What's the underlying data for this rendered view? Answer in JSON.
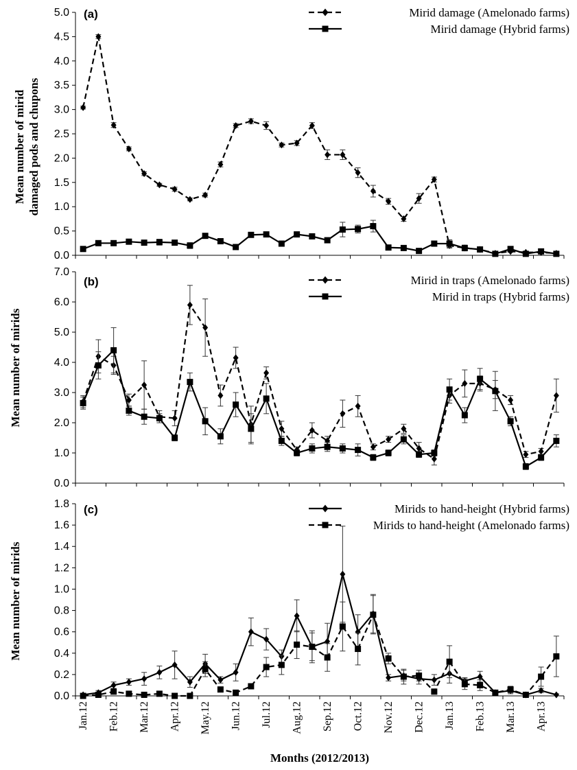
{
  "figure": {
    "xlabel": "Months (2012/2013)",
    "months": [
      "Jan.12",
      "Feb.12",
      "Mar.12",
      "Apr.12",
      "May.12",
      "Jun.12",
      "Jul.12",
      "Aug.12",
      "Sep.12",
      "Oct.12",
      "Nov.12",
      "Dec.12",
      "Jan.13",
      "Feb.13",
      "Mar.13",
      "Apr.13"
    ]
  },
  "chart_data": [
    {
      "type": "line",
      "panel": "(a)",
      "ylabel": "Mean number of mirid damaged pods and chupons",
      "ylabel_lines": [
        "Mean number of mirid",
        "damaged pods and chupons"
      ],
      "ylim": [
        0,
        5
      ],
      "yticks": [
        "0.0",
        "0.5",
        "1.0",
        "1.5",
        "2.0",
        "2.5",
        "3.0",
        "3.5",
        "4.0",
        "4.5",
        "5.0"
      ],
      "x_points_per_month": 2,
      "legend_position": "top-right",
      "series": [
        {
          "name": "Mirid damage (Amelonado farms)",
          "style": "dashed",
          "marker": "diamond",
          "values": [
            3.04,
            4.5,
            2.68,
            2.19,
            1.68,
            1.45,
            1.36,
            1.15,
            1.24,
            1.87,
            2.67,
            2.76,
            2.67,
            2.27,
            2.31,
            2.67,
            2.07,
            2.07,
            1.7,
            1.32,
            1.11,
            0.75,
            1.17,
            1.56,
            0.2,
            0.15,
            0.12,
            0.04,
            0.08,
            0.06,
            0.06,
            0.04
          ],
          "errors": [
            0.03,
            0.04,
            0.05,
            0.04,
            0.04,
            0.03,
            0.04,
            0.03,
            0.04,
            0.05,
            0.04,
            0.05,
            0.08,
            0.04,
            0.05,
            0.06,
            0.1,
            0.1,
            0.1,
            0.12,
            0.06,
            0.05,
            0.1,
            0.05,
            0.05,
            0.04,
            0.03,
            0.02,
            0.02,
            0.02,
            0.02,
            0.02
          ]
        },
        {
          "name": "Mirid damage (Hybrid farms)",
          "style": "solid",
          "marker": "square",
          "values": [
            0.13,
            0.25,
            0.25,
            0.28,
            0.26,
            0.27,
            0.26,
            0.2,
            0.4,
            0.29,
            0.17,
            0.42,
            0.43,
            0.24,
            0.43,
            0.39,
            0.31,
            0.53,
            0.54,
            0.6,
            0.16,
            0.15,
            0.09,
            0.24,
            0.24,
            0.15,
            0.12,
            0.03,
            0.13,
            0.03,
            0.08,
            0.03
          ],
          "errors": [
            0.03,
            0.04,
            0.04,
            0.04,
            0.05,
            0.06,
            0.05,
            0.06,
            0.05,
            0.04,
            0.03,
            0.04,
            0.05,
            0.04,
            0.04,
            0.04,
            0.04,
            0.15,
            0.08,
            0.12,
            0.04,
            0.03,
            0.03,
            0.04,
            0.08,
            0.06,
            0.04,
            0.02,
            0.05,
            0.02,
            0.03,
            0.02
          ]
        }
      ]
    },
    {
      "type": "line",
      "panel": "(b)",
      "ylabel": "Mean number of mirids",
      "ylim": [
        0,
        7
      ],
      "yticks": [
        "0.0",
        "1.0",
        "2.0",
        "3.0",
        "4.0",
        "5.0",
        "6.0",
        "7.0"
      ],
      "x_points_per_month": 2,
      "legend_position": "top-right",
      "series": [
        {
          "name": "Mirid in traps (Amelonado farms)",
          "style": "dashed",
          "marker": "diamond",
          "values": [
            2.7,
            4.2,
            3.9,
            2.75,
            3.25,
            2.2,
            2.15,
            5.9,
            5.15,
            2.9,
            4.15,
            1.95,
            3.65,
            1.8,
            1.1,
            1.75,
            1.4,
            2.3,
            2.55,
            1.2,
            1.45,
            1.8,
            1.15,
            0.8,
            2.9,
            3.3,
            3.3,
            3.1,
            2.75,
            0.95,
            1.05,
            2.9
          ],
          "errors": [
            0.2,
            0.55,
            0.3,
            0.2,
            0.8,
            0.2,
            0.25,
            0.65,
            0.95,
            0.35,
            0.35,
            0.6,
            0.2,
            0.25,
            0.1,
            0.25,
            0.15,
            0.45,
            0.35,
            0.1,
            0.1,
            0.15,
            0.2,
            0.2,
            0.25,
            0.45,
            0.25,
            0.3,
            0.15,
            0.1,
            0.1,
            0.55
          ]
        },
        {
          "name": "Mirid in traps (Hybrid farms)",
          "style": "solid",
          "marker": "square",
          "values": [
            2.65,
            3.9,
            4.4,
            2.4,
            2.2,
            2.15,
            1.5,
            3.35,
            2.05,
            1.55,
            2.6,
            1.8,
            2.8,
            1.4,
            1.0,
            1.15,
            1.2,
            1.15,
            1.1,
            0.85,
            1.0,
            1.45,
            0.95,
            1.0,
            3.1,
            2.25,
            3.45,
            3.05,
            2.05,
            0.55,
            0.85,
            1.4
          ],
          "errors": [
            0.2,
            0.45,
            0.75,
            0.15,
            0.25,
            0.15,
            0.1,
            0.3,
            0.45,
            0.25,
            0.4,
            0.5,
            0.5,
            0.15,
            0.1,
            0.15,
            0.15,
            0.15,
            0.2,
            0.1,
            0.1,
            0.15,
            0.1,
            0.1,
            0.35,
            0.25,
            0.35,
            0.65,
            0.15,
            0.1,
            0.1,
            0.2
          ]
        }
      ]
    },
    {
      "type": "line",
      "panel": "(c)",
      "ylabel": "Mean number of mirids",
      "ylim": [
        0,
        1.8
      ],
      "yticks": [
        "0.0",
        "0.2",
        "0.4",
        "0.6",
        "0.8",
        "1.0",
        "1.2",
        "1.4",
        "1.6",
        "1.8"
      ],
      "x_points_per_month": 2,
      "legend_position": "top-right",
      "series": [
        {
          "name": "Mirids to hand-height (Hybrid farms)",
          "style": "solid",
          "marker": "diamond",
          "values": [
            0.01,
            0.03,
            0.1,
            0.13,
            0.16,
            0.22,
            0.29,
            0.13,
            0.3,
            0.15,
            0.22,
            0.6,
            0.53,
            0.37,
            0.75,
            0.46,
            0.51,
            1.14,
            0.6,
            0.77,
            0.17,
            0.19,
            0.16,
            0.15,
            0.21,
            0.14,
            0.18,
            0.03,
            0.05,
            0.01,
            0.05,
            0.01
          ],
          "errors": [
            0.01,
            0.02,
            0.03,
            0.03,
            0.06,
            0.06,
            0.13,
            0.05,
            0.09,
            0.03,
            0.08,
            0.13,
            0.1,
            0.06,
            0.15,
            0.15,
            0.17,
            0.45,
            0.16,
            0.18,
            0.03,
            0.05,
            0.05,
            0.05,
            0.09,
            0.03,
            0.05,
            0.01,
            0.03,
            0.01,
            0.02,
            0.01
          ]
        },
        {
          "name": "Mirids to hand-height (Amelonado farms)",
          "style": "dashed",
          "marker": "square",
          "values": [
            0.0,
            0.01,
            0.04,
            0.02,
            0.01,
            0.02,
            0.0,
            0.0,
            0.25,
            0.06,
            0.03,
            0.09,
            0.27,
            0.29,
            0.48,
            0.46,
            0.36,
            0.65,
            0.44,
            0.76,
            0.35,
            0.18,
            0.19,
            0.04,
            0.32,
            0.11,
            0.1,
            0.03,
            0.06,
            0.01,
            0.18,
            0.37
          ],
          "errors": [
            0.005,
            0.005,
            0.01,
            0.01,
            0.005,
            0.01,
            0.005,
            0.005,
            0.07,
            0.02,
            0.02,
            0.02,
            0.09,
            0.09,
            0.13,
            0.13,
            0.13,
            0.23,
            0.15,
            0.18,
            0.05,
            0.07,
            0.05,
            0.02,
            0.15,
            0.05,
            0.05,
            0.02,
            0.03,
            0.01,
            0.09,
            0.19
          ]
        }
      ]
    }
  ]
}
